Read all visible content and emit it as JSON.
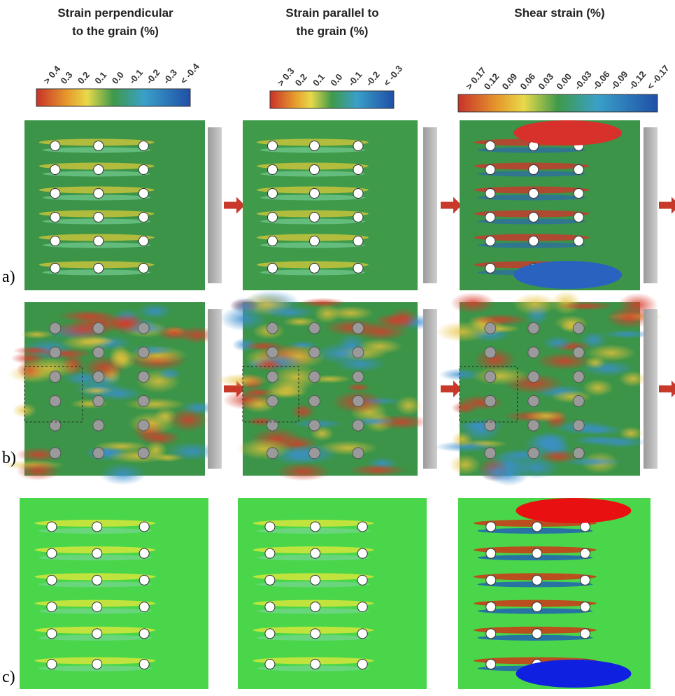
{
  "columns": [
    {
      "title_lines": [
        "Strain perpendicular",
        "to the grain (%)"
      ],
      "scale_labels": [
        "> 0.4",
        "0.3",
        "0.2",
        "0.1",
        "0.0",
        "-0.1",
        "-0.2",
        "-0.3",
        "< -0.4"
      ]
    },
    {
      "title_lines": [
        "Strain parallel to",
        "the grain (%)"
      ],
      "scale_labels": [
        "> 0.3",
        "0.2",
        "0.1",
        "0.0",
        "-0.1",
        "-0.2",
        "< -0.3"
      ]
    },
    {
      "title_lines": [
        "Shear strain (%)"
      ],
      "scale_labels": [
        "> 0.17",
        "0.12",
        "0.09",
        "0.06",
        "0.03",
        "0.00",
        "-0.03",
        "-0.06",
        "-0.09",
        "-0.12",
        "< -0.17"
      ]
    }
  ],
  "rows": [
    "a)",
    "b)",
    "c)"
  ]
}
